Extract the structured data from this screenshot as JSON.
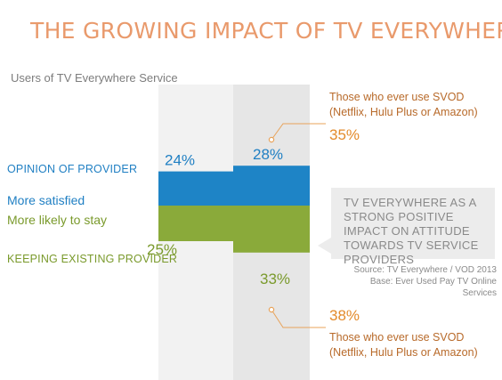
{
  "title": "THE GROWING IMPACT OF TV EVERYWHERE",
  "subtitle": "Users of TV Everywhere Service",
  "labels": {
    "opinion": "OPINION OF PROVIDER",
    "keeping": "KEEPING EXISTING PROVIDER",
    "more_satisfied": "More satisfied",
    "more_likely_stay": "More likely to stay"
  },
  "callouts": {
    "top_text": "Those who ever use SVOD (Netflix, Hulu Plus or Amazon)",
    "top_pct": "35%",
    "bottom_pct": "38%",
    "bottom_text": "Those who ever use SVOD (Netflix, Hulu Plus or Amazon)"
  },
  "impact_box": "TV EVERYWHERE AS A STRONG POSITIVE IMPACT ON ATTITUDE TOWARDS TV SERVICE PROVIDERS",
  "source": {
    "line1": "Source: TV Everywhere / VOD 2013",
    "line2": "Base: Ever Used Pay TV Online Services"
  },
  "colors": {
    "title": "#e99a6c",
    "satisfied": "#1e84c6",
    "stay": "#8aaa3a",
    "accent": "#e38b2c",
    "label_blue": "#1f7fc3",
    "label_green": "#7a9a2c"
  },
  "chart_data": {
    "type": "bar",
    "orientation": "diverging",
    "categories": [
      "Users of TV Everywhere Service",
      "Those who ever use SVOD"
    ],
    "series": [
      {
        "name": "More satisfied",
        "values": [
          24,
          28
        ]
      },
      {
        "name": "More likely to stay",
        "values": [
          25,
          33
        ]
      }
    ],
    "labels": [
      "24%",
      "28%",
      "25%",
      "33%"
    ],
    "svod_callouts": [
      "35%",
      "38%"
    ]
  }
}
